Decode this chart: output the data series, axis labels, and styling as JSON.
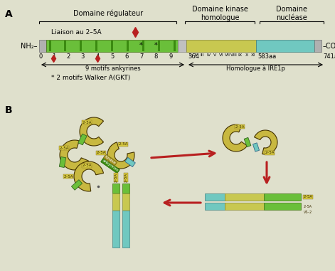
{
  "bg_color": "#dfe0cc",
  "title_a": "A",
  "title_b": "B",
  "domain_reg_label": "Domaine régulateur",
  "domain_kinase_label": "Domaine kinase\nhomologue",
  "domain_nuclease_label": "Domaine\nnucléase",
  "liaison_label": "Liaison au 2–5A",
  "nh2_label": "NH₂–",
  "cooh_label": "–COOH",
  "ankyrines_label": "9 motifs ankyrines",
  "ire1p_label": "Homologue à IRE1p",
  "walker_label": "* 2 motifs Walker A(GKT)",
  "green_color": "#6abf3a",
  "green_dark": "#3a8a10",
  "yellow_color": "#c8c850",
  "cyan_color": "#70c8c0",
  "gray_color": "#b0b0b0",
  "olive_color": "#c8b840",
  "red_color": "#b82020"
}
